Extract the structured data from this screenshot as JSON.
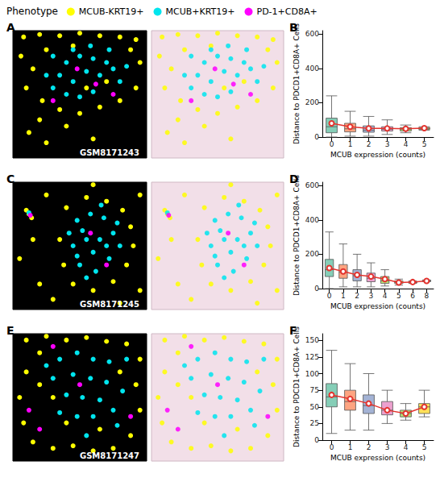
{
  "chart_data": [
    {
      "type": "scatter",
      "panel": "A",
      "title": "Phenotype",
      "legend": "top",
      "annotation": "GSM8171243",
      "xlim": [
        0,
        100
      ],
      "ylim": [
        0,
        100
      ],
      "tick_labels": false,
      "series": [
        {
          "name": "MCUB-KRT19+",
          "color": "#ffff00",
          "marker": "circle",
          "values": [
            [
              8,
              95
            ],
            [
              20,
              97
            ],
            [
              35,
              96
            ],
            [
              50,
              98
            ],
            [
              65,
              96
            ],
            [
              80,
              95
            ],
            [
              92,
              93
            ],
            [
              6,
              80
            ],
            [
              15,
              70
            ],
            [
              10,
              55
            ],
            [
              22,
              45
            ],
            [
              35,
              38
            ],
            [
              50,
              35
            ],
            [
              65,
              40
            ],
            [
              80,
              45
            ],
            [
              92,
              55
            ],
            [
              95,
              75
            ],
            [
              88,
              85
            ],
            [
              25,
              85
            ],
            [
              45,
              88
            ],
            [
              70,
              60
            ],
            [
              55,
              55
            ],
            [
              12,
              20
            ],
            [
              25,
              12
            ],
            [
              40,
              25
            ],
            [
              60,
              15
            ],
            [
              20,
              30
            ]
          ]
        },
        {
          "name": "MCUB+KRT19+",
          "color": "#00e5ee",
          "marker": "circle",
          "values": [
            [
              30,
              80
            ],
            [
              40,
              75
            ],
            [
              50,
              80
            ],
            [
              60,
              78
            ],
            [
              70,
              75
            ],
            [
              35,
              65
            ],
            [
              45,
              60
            ],
            [
              55,
              68
            ],
            [
              65,
              65
            ],
            [
              75,
              70
            ],
            [
              40,
              50
            ],
            [
              50,
              48
            ],
            [
              60,
              52
            ],
            [
              30,
              55
            ],
            [
              80,
              60
            ],
            [
              45,
              85
            ],
            [
              58,
              88
            ],
            [
              72,
              85
            ],
            [
              25,
              65
            ],
            [
              85,
              72
            ]
          ]
        },
        {
          "name": "PD-1+CD8A+",
          "color": "#ff00ff",
          "marker": "circle",
          "values": [
            [
              48,
              70
            ],
            [
              62,
              58
            ],
            [
              30,
              45
            ],
            [
              75,
              50
            ]
          ]
        }
      ]
    },
    {
      "type": "boxplot",
      "panel": "B",
      "xlabel": "MCUB expression (counts)",
      "ylabel": "Distance to PDCD1+CD8A+ Cells",
      "categories": [
        "0",
        "1",
        "2",
        "3",
        "4",
        "5"
      ],
      "ylim": [
        0,
        620
      ],
      "yticks": [
        0,
        200,
        400,
        600
      ],
      "grid": false,
      "series": [
        {
          "type": "boxplot",
          "colors": [
            "#66c2a5",
            "#fc8d62",
            "#8da0cb",
            "#e78ac3",
            "#a6d854",
            "#ffd92f"
          ],
          "values": [
            [
              0,
              25,
              60,
              110,
              240
            ],
            [
              5,
              30,
              48,
              80,
              150
            ],
            [
              5,
              28,
              40,
              65,
              120
            ],
            [
              15,
              35,
              45,
              60,
              100
            ],
            [
              25,
              35,
              45,
              55,
              70
            ],
            [
              40,
              45,
              50,
              55,
              60
            ]
          ]
        },
        {
          "type": "line",
          "color": "#e3342f",
          "marker": "circle",
          "values": [
            80,
            60,
            50,
            50,
            48,
            52
          ]
        }
      ]
    },
    {
      "type": "scatter",
      "panel": "C",
      "annotation": "GSM8171245",
      "xlim": [
        0,
        100
      ],
      "ylim": [
        0,
        100
      ],
      "tick_labels": false,
      "series": [
        {
          "name": "MCUB-KRT19+",
          "color": "#ffff00",
          "marker": "circle",
          "values": [
            [
              40,
              80
            ],
            [
              55,
              88
            ],
            [
              70,
              85
            ],
            [
              82,
              78
            ],
            [
              88,
              65
            ],
            [
              90,
              50
            ],
            [
              85,
              35
            ],
            [
              75,
              22
            ],
            [
              60,
              15
            ],
            [
              45,
              20
            ],
            [
              38,
              35
            ],
            [
              35,
              55
            ],
            [
              12,
              75
            ],
            [
              14,
              72
            ],
            [
              10,
              78
            ],
            [
              5,
              40
            ],
            [
              20,
              20
            ],
            [
              25,
              90
            ],
            [
              60,
              98
            ],
            [
              95,
              90
            ],
            [
              95,
              15
            ],
            [
              15,
              55
            ],
            [
              30,
              8
            ],
            [
              80,
              5
            ]
          ]
        },
        {
          "name": "MCUB+KRT19+",
          "color": "#00e5ee",
          "marker": "circle",
          "values": [
            [
              48,
              70
            ],
            [
              58,
              75
            ],
            [
              68,
              72
            ],
            [
              75,
              60
            ],
            [
              80,
              50
            ],
            [
              72,
              40
            ],
            [
              62,
              30
            ],
            [
              50,
              35
            ],
            [
              45,
              50
            ],
            [
              55,
              55
            ],
            [
              65,
              55
            ],
            [
              52,
              62
            ],
            [
              60,
              45
            ],
            [
              70,
              50
            ],
            [
              42,
              60
            ],
            [
              78,
              68
            ],
            [
              55,
              25
            ],
            [
              66,
              82
            ],
            [
              12,
              76
            ],
            [
              48,
              42
            ]
          ]
        },
        {
          "name": "PD-1+CD8A+",
          "color": "#ff00ff",
          "marker": "circle",
          "values": [
            [
              13,
              74
            ],
            [
              58,
              60
            ],
            [
              70,
              35
            ]
          ]
        }
      ]
    },
    {
      "type": "boxplot",
      "panel": "D",
      "xlabel": "MCUB expression (counts)",
      "ylabel": "Distance to PDCD1+CD8A+ Cells",
      "categories": [
        "0",
        "1",
        "2",
        "3",
        "4",
        "5",
        "6",
        "8"
      ],
      "ylim": [
        0,
        620
      ],
      "yticks": [
        0,
        200,
        400,
        600
      ],
      "grid": false,
      "series": [
        {
          "type": "boxplot",
          "colors": [
            "#66c2a5",
            "#fc8d62",
            "#8da0cb",
            "#e78ac3",
            "#a6d854",
            "#ffd92f",
            "#e5c494",
            "#b3b3b3"
          ],
          "values": [
            [
              0,
              70,
              110,
              170,
              330
            ],
            [
              10,
              60,
              95,
              140,
              260
            ],
            [
              10,
              45,
              75,
              110,
              200
            ],
            [
              10,
              40,
              60,
              90,
              150
            ],
            [
              15,
              30,
              45,
              70,
              110
            ],
            [
              20,
              30,
              35,
              45,
              55
            ],
            [
              30,
              33,
              35,
              40,
              45
            ],
            [
              40,
              42,
              45,
              48,
              50
            ]
          ]
        },
        {
          "type": "line",
          "color": "#e3342f",
          "marker": "circle",
          "values": [
            120,
            100,
            80,
            70,
            55,
            35,
            38,
            45
          ]
        }
      ]
    },
    {
      "type": "scatter",
      "panel": "E",
      "annotation": "GSM8171247",
      "xlim": [
        0,
        100
      ],
      "ylim": [
        0,
        100
      ],
      "tick_labels": false,
      "series": [
        {
          "name": "MCUB-KRT19+",
          "color": "#ffff00",
          "marker": "circle",
          "values": [
            [
              10,
              95
            ],
            [
              25,
              98
            ],
            [
              40,
              95
            ],
            [
              55,
              97
            ],
            [
              70,
              94
            ],
            [
              85,
              92
            ],
            [
              95,
              80
            ],
            [
              92,
              60
            ],
            [
              95,
              40
            ],
            [
              88,
              20
            ],
            [
              75,
              10
            ],
            [
              60,
              8
            ],
            [
              45,
              12
            ],
            [
              30,
              10
            ],
            [
              15,
              15
            ],
            [
              8,
              30
            ],
            [
              5,
              50
            ],
            [
              10,
              70
            ],
            [
              20,
              85
            ],
            [
              30,
              50
            ],
            [
              20,
              60
            ],
            [
              80,
              70
            ],
            [
              40,
              30
            ],
            [
              65,
              25
            ]
          ]
        },
        {
          "name": "MCUB+KRT19+",
          "color": "#00e5ee",
          "marker": "circle",
          "values": [
            [
              35,
              80
            ],
            [
              48,
              85
            ],
            [
              60,
              80
            ],
            [
              72,
              78
            ],
            [
              30,
              65
            ],
            [
              45,
              68
            ],
            [
              58,
              65
            ],
            [
              70,
              62
            ],
            [
              82,
              55
            ],
            [
              40,
              52
            ],
            [
              52,
              50
            ],
            [
              65,
              48
            ],
            [
              75,
              40
            ],
            [
              35,
              38
            ],
            [
              48,
              35
            ],
            [
              60,
              35
            ],
            [
              25,
              75
            ],
            [
              85,
              80
            ],
            [
              55,
              20
            ],
            [
              78,
              28
            ]
          ]
        },
        {
          "name": "PD-1+CD8A+",
          "color": "#ff00ff",
          "marker": "circle",
          "values": [
            [
              12,
              40
            ],
            [
              20,
              25
            ],
            [
              50,
              60
            ],
            [
              88,
              35
            ],
            [
              30,
              90
            ]
          ]
        }
      ]
    },
    {
      "type": "boxplot",
      "panel": "F",
      "xlabel": "MCUB expression (counts)",
      "ylabel": "Distance to PDCD1+CD8A+ Cells",
      "categories": [
        "0",
        "1",
        "2",
        "3",
        "4",
        "5"
      ],
      "ylim": [
        0,
        160
      ],
      "yticks": [
        0,
        25,
        50,
        75,
        100,
        125,
        150
      ],
      "grid": false,
      "series": [
        {
          "type": "boxplot",
          "colors": [
            "#66c2a5",
            "#fc8d62",
            "#8da0cb",
            "#e78ac3",
            "#a6d854",
            "#ffd92f"
          ],
          "values": [
            [
              10,
              50,
              65,
              85,
              135
            ],
            [
              15,
              45,
              58,
              75,
              115
            ],
            [
              15,
              40,
              52,
              68,
              100
            ],
            [
              25,
              38,
              45,
              58,
              75
            ],
            [
              30,
              35,
              40,
              45,
              55
            ],
            [
              35,
              40,
              50,
              55,
              75
            ]
          ]
        },
        {
          "type": "line",
          "color": "#e3342f",
          "marker": "circle",
          "values": [
            68,
            62,
            55,
            45,
            40,
            50
          ]
        }
      ]
    }
  ]
}
